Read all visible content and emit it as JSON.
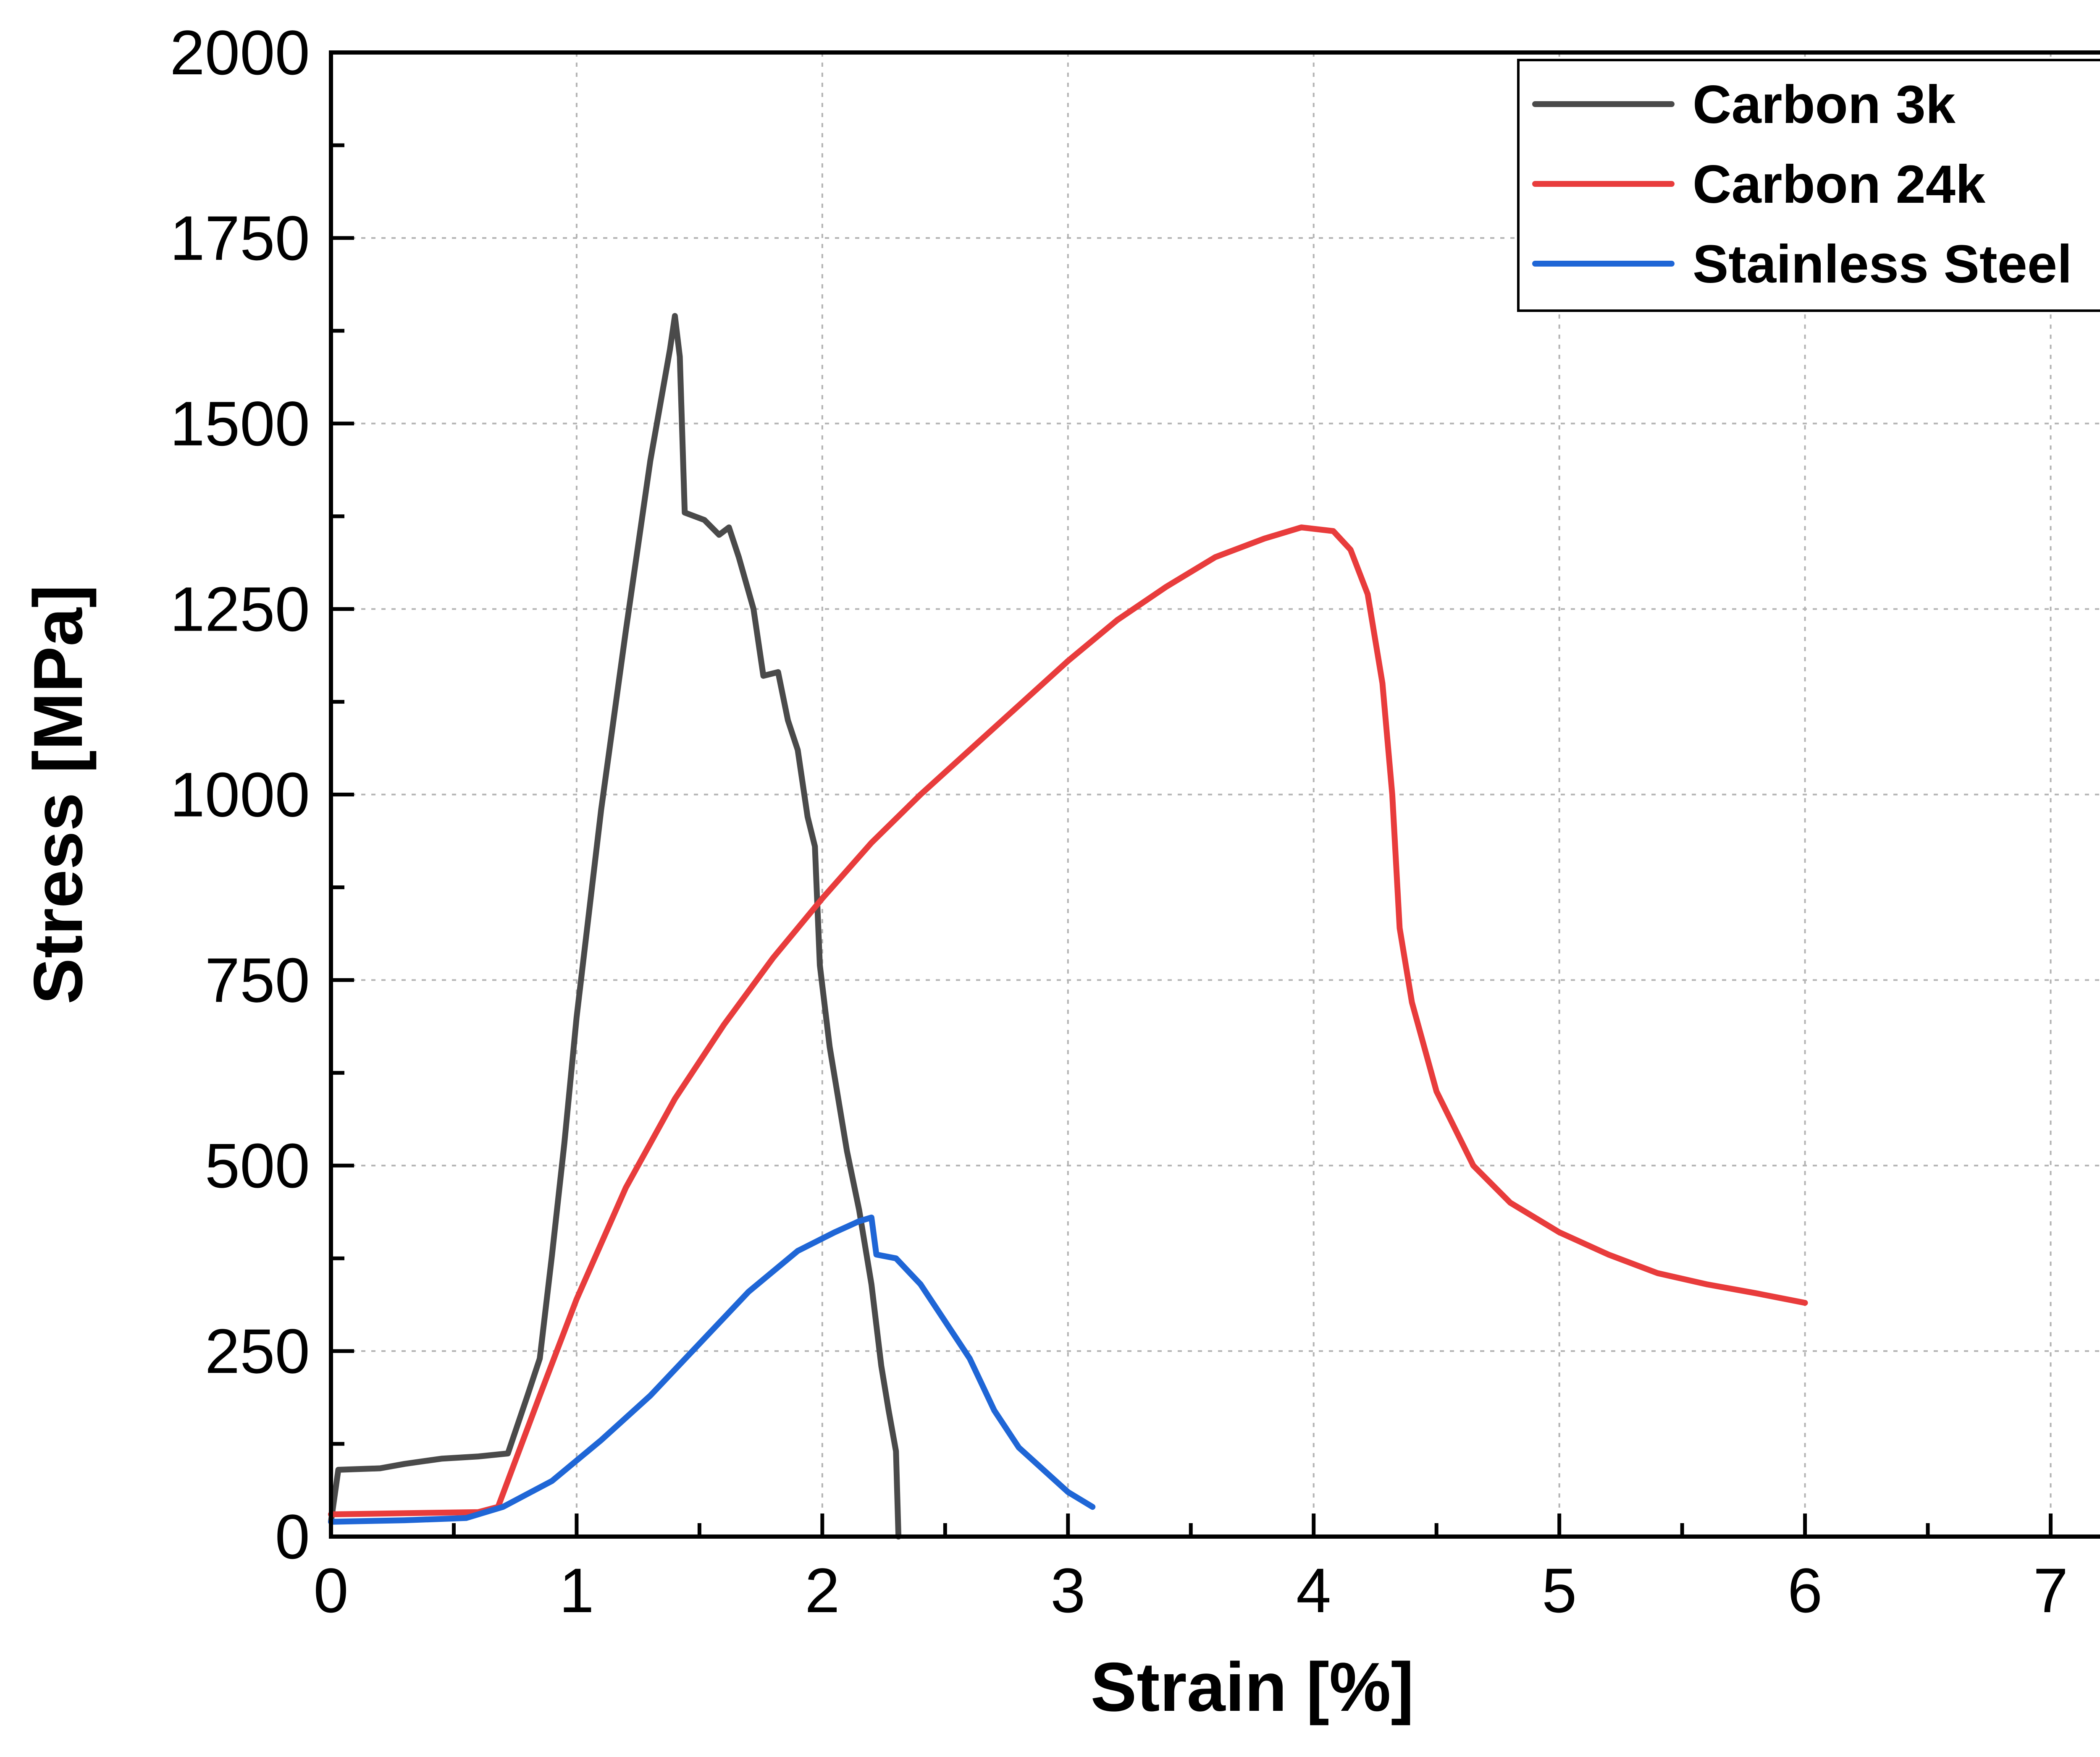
{
  "chart_data": {
    "type": "line",
    "xlabel": "Strain [%]",
    "ylabel": "Stress [MPa]",
    "xlim": [
      0,
      7.5
    ],
    "ylim": [
      0,
      2000
    ],
    "x_ticks": [
      0,
      1,
      2,
      3,
      4,
      5,
      6,
      7
    ],
    "y_ticks": [
      0,
      250,
      500,
      750,
      1000,
      1250,
      1500,
      1750,
      2000
    ],
    "x_tick_labels": [
      "0",
      "1",
      "2",
      "3",
      "4",
      "5",
      "6",
      "7"
    ],
    "y_tick_labels": [
      "0",
      "250",
      "500",
      "750",
      "1000",
      "1250",
      "1500",
      "1750",
      "2000"
    ],
    "grid": true,
    "legend_position": "top-right",
    "series": [
      {
        "name": "Carbon 3k",
        "color": "#4a4a4a",
        "points": [
          [
            0,
            20
          ],
          [
            0.03,
            90
          ],
          [
            0.2,
            92
          ],
          [
            0.3,
            98
          ],
          [
            0.45,
            105
          ],
          [
            0.6,
            108
          ],
          [
            0.72,
            112
          ],
          [
            0.8,
            190
          ],
          [
            0.85,
            240
          ],
          [
            0.9,
            380
          ],
          [
            0.95,
            530
          ],
          [
            1.0,
            700
          ],
          [
            1.1,
            980
          ],
          [
            1.2,
            1220
          ],
          [
            1.3,
            1450
          ],
          [
            1.38,
            1600
          ],
          [
            1.4,
            1645
          ],
          [
            1.42,
            1590
          ],
          [
            1.44,
            1380
          ],
          [
            1.52,
            1370
          ],
          [
            1.58,
            1350
          ],
          [
            1.62,
            1360
          ],
          [
            1.66,
            1320
          ],
          [
            1.72,
            1250
          ],
          [
            1.76,
            1160
          ],
          [
            1.82,
            1165
          ],
          [
            1.86,
            1100
          ],
          [
            1.9,
            1060
          ],
          [
            1.94,
            970
          ],
          [
            1.97,
            930
          ],
          [
            1.99,
            770
          ],
          [
            2.03,
            660
          ],
          [
            2.07,
            580
          ],
          [
            2.1,
            520
          ],
          [
            2.15,
            440
          ],
          [
            2.2,
            340
          ],
          [
            2.24,
            230
          ],
          [
            2.27,
            170
          ],
          [
            2.3,
            115
          ],
          [
            2.31,
            0
          ]
        ]
      },
      {
        "name": "Carbon 24k",
        "color": "#e83c3c",
        "points": [
          [
            0,
            30
          ],
          [
            0.6,
            33
          ],
          [
            0.68,
            40
          ],
          [
            0.85,
            190
          ],
          [
            1.0,
            320
          ],
          [
            1.2,
            470
          ],
          [
            1.4,
            590
          ],
          [
            1.6,
            690
          ],
          [
            1.8,
            780
          ],
          [
            2.0,
            860
          ],
          [
            2.2,
            935
          ],
          [
            2.4,
            1000
          ],
          [
            2.6,
            1060
          ],
          [
            2.8,
            1120
          ],
          [
            3.0,
            1180
          ],
          [
            3.2,
            1235
          ],
          [
            3.4,
            1280
          ],
          [
            3.6,
            1320
          ],
          [
            3.8,
            1345
          ],
          [
            3.95,
            1360
          ],
          [
            4.08,
            1355
          ],
          [
            4.15,
            1330
          ],
          [
            4.22,
            1270
          ],
          [
            4.28,
            1150
          ],
          [
            4.32,
            1000
          ],
          [
            4.35,
            820
          ],
          [
            4.4,
            720
          ],
          [
            4.5,
            600
          ],
          [
            4.65,
            500
          ],
          [
            4.8,
            450
          ],
          [
            5.0,
            410
          ],
          [
            5.2,
            380
          ],
          [
            5.4,
            355
          ],
          [
            5.6,
            340
          ],
          [
            5.8,
            328
          ],
          [
            6.0,
            315
          ]
        ]
      },
      {
        "name": "Stainless Steel",
        "color": "#1f66d6",
        "points": [
          [
            0,
            20
          ],
          [
            0.3,
            22
          ],
          [
            0.55,
            25
          ],
          [
            0.7,
            40
          ],
          [
            0.9,
            75
          ],
          [
            1.1,
            130
          ],
          [
            1.3,
            190
          ],
          [
            1.5,
            260
          ],
          [
            1.7,
            330
          ],
          [
            1.9,
            385
          ],
          [
            2.05,
            410
          ],
          [
            2.15,
            425
          ],
          [
            2.2,
            430
          ],
          [
            2.22,
            380
          ],
          [
            2.3,
            375
          ],
          [
            2.4,
            340
          ],
          [
            2.5,
            290
          ],
          [
            2.6,
            240
          ],
          [
            2.7,
            170
          ],
          [
            2.8,
            120
          ],
          [
            2.9,
            90
          ],
          [
            3.0,
            60
          ],
          [
            3.1,
            40
          ]
        ]
      }
    ]
  }
}
